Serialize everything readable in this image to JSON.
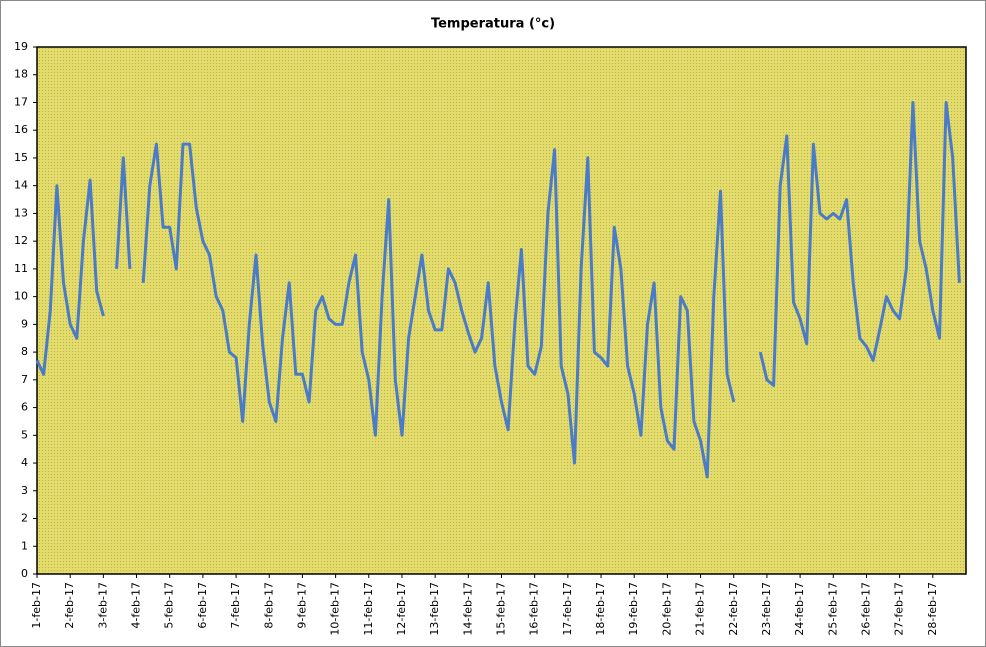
{
  "chart_data": {
    "type": "line",
    "title": "Temperatura (°c)",
    "x": [
      1,
      1.2,
      1.4,
      1.6,
      1.8,
      2,
      2.2,
      2.4,
      2.6,
      2.8,
      3,
      3.2,
      3.4,
      3.6,
      3.8,
      4,
      4.2,
      4.4,
      4.6,
      4.8,
      5,
      5.2,
      5.4,
      5.6,
      5.8,
      6,
      6.2,
      6.4,
      6.6,
      6.8,
      7,
      7.2,
      7.4,
      7.6,
      7.8,
      8,
      8.2,
      8.4,
      8.6,
      8.8,
      9,
      9.2,
      9.4,
      9.6,
      9.8,
      10,
      10.2,
      10.4,
      10.6,
      10.8,
      11,
      11.2,
      11.4,
      11.6,
      11.8,
      12,
      12.2,
      12.4,
      12.6,
      12.8,
      13,
      13.2,
      13.4,
      13.6,
      13.8,
      14,
      14.2,
      14.4,
      14.6,
      14.8,
      15,
      15.2,
      15.4,
      15.6,
      15.8,
      16,
      16.2,
      16.4,
      16.6,
      16.8,
      17,
      17.2,
      17.4,
      17.6,
      17.8,
      18,
      18.2,
      18.4,
      18.6,
      18.8,
      19,
      19.2,
      19.4,
      19.6,
      19.8,
      20,
      20.2,
      20.4,
      20.6,
      20.8,
      21,
      21.2,
      21.4,
      21.6,
      21.8,
      22,
      22.2,
      22.4,
      22.6,
      22.8,
      23,
      23.2,
      23.4,
      23.6,
      23.8,
      24,
      24.2,
      24.4,
      24.6,
      24.8,
      25,
      25.2,
      25.4,
      25.6,
      25.8,
      26,
      26.2,
      26.4,
      26.6,
      26.8,
      27,
      27.2,
      27.4,
      27.6,
      27.8,
      28,
      28.2,
      28.4,
      28.6,
      28.8
    ],
    "series": [
      {
        "color": "#4a7bc9",
        "values": [
          7.7,
          7.2,
          9.5,
          14,
          10.5,
          9,
          8.5,
          12,
          14.2,
          10.2,
          9.3,
          null,
          11,
          15,
          11,
          null,
          10.5,
          14,
          15.5,
          12.5,
          12.5,
          11,
          15.5,
          15.5,
          13.2,
          12,
          11.5,
          10,
          9.5,
          8,
          7.8,
          5.5,
          9,
          11.5,
          8.3,
          6.2,
          5.5,
          8.5,
          10.5,
          7.2,
          7.2,
          6.2,
          9.5,
          10,
          9.2,
          9,
          9,
          10.5,
          11.5,
          8,
          7,
          5,
          10,
          13.5,
          7,
          5,
          8.5,
          10,
          11.5,
          9.5,
          8.8,
          8.8,
          11,
          10.5,
          9.5,
          8.7,
          8,
          8.5,
          10.5,
          7.5,
          6.2,
          5.2,
          9,
          11.7,
          7.5,
          7.2,
          8.2,
          13,
          15.3,
          7.5,
          6.5,
          4,
          11,
          15,
          8,
          7.8,
          7.5,
          12.5,
          11,
          7.5,
          6.5,
          5,
          9,
          10.5,
          6,
          4.8,
          4.5,
          10,
          9.5,
          5.5,
          4.8,
          3.5,
          10,
          13.8,
          7.2,
          6.2,
          null,
          null,
          null,
          8,
          7,
          6.8,
          14,
          15.8,
          9.8,
          9.2,
          8.3,
          15.5,
          13,
          12.8,
          13,
          12.8,
          13.5,
          10.5,
          8.5,
          8.2,
          7.7,
          8.8,
          10,
          9.5,
          9.2,
          11,
          17,
          12,
          11,
          9.5,
          8.5,
          17,
          15,
          10.5
        ]
      }
    ],
    "xlim": [
      1,
      29
    ],
    "xticks": [
      {
        "value": 1,
        "label": "1-feb-17"
      },
      {
        "value": 2,
        "label": "2-feb-17"
      },
      {
        "value": 3,
        "label": "3-feb-17"
      },
      {
        "value": 4,
        "label": "4-feb-17"
      },
      {
        "value": 5,
        "label": "5-feb-17"
      },
      {
        "value": 6,
        "label": "6-feb-17"
      },
      {
        "value": 7,
        "label": "7-feb-17"
      },
      {
        "value": 8,
        "label": "8-feb-17"
      },
      {
        "value": 9,
        "label": "9-feb-17"
      },
      {
        "value": 10,
        "label": "10-feb-17"
      },
      {
        "value": 11,
        "label": "11-feb-17"
      },
      {
        "value": 12,
        "label": "12-feb-17"
      },
      {
        "value": 13,
        "label": "13-feb-17"
      },
      {
        "value": 14,
        "label": "14-feb-17"
      },
      {
        "value": 15,
        "label": "15-feb-17"
      },
      {
        "value": 16,
        "label": "16-feb-17"
      },
      {
        "value": 17,
        "label": "17-feb-17"
      },
      {
        "value": 18,
        "label": "18-feb-17"
      },
      {
        "value": 19,
        "label": "19-feb-17"
      },
      {
        "value": 20,
        "label": "20-feb-17"
      },
      {
        "value": 21,
        "label": "21-feb-17"
      },
      {
        "value": 22,
        "label": "22-feb-17"
      },
      {
        "value": 23,
        "label": "23-feb-17"
      },
      {
        "value": 24,
        "label": "24-feb-17"
      },
      {
        "value": 25,
        "label": "25-feb-17"
      },
      {
        "value": 26,
        "label": "26-feb-17"
      },
      {
        "value": 27,
        "label": "27-feb-17"
      },
      {
        "value": 28,
        "label": "28-feb-17"
      }
    ],
    "ylim": [
      0,
      19
    ],
    "yticks": [
      0,
      1,
      2,
      3,
      4,
      5,
      6,
      7,
      8,
      9,
      10,
      11,
      12,
      13,
      14,
      15,
      16,
      17,
      18,
      19
    ]
  }
}
